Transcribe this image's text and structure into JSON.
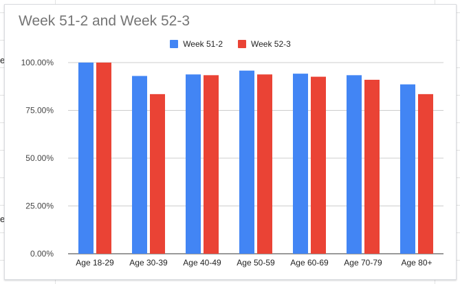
{
  "chart_data": {
    "type": "bar",
    "title": "Week 51-2 and Week 52-3",
    "xlabel": "",
    "ylabel": "",
    "categories": [
      "Age 18-29",
      "Age 30-39",
      "Age 40-49",
      "Age 50-59",
      "Age 60-69",
      "Age 70-79",
      "Age 80+"
    ],
    "series": [
      {
        "name": "Week 51-2",
        "color": "#4285f4",
        "values": [
          100.0,
          93.0,
          93.8,
          95.8,
          94.2,
          93.4,
          88.6
        ]
      },
      {
        "name": "Week 52-3",
        "color": "#ea4335",
        "values": [
          100.0,
          83.5,
          93.4,
          93.8,
          92.6,
          91.0,
          83.5
        ]
      }
    ],
    "ylim": [
      0,
      100
    ],
    "yticks": [
      "0.00%",
      "25.00%",
      "50.00%",
      "75.00%",
      "100.00%"
    ],
    "ytick_values": [
      0,
      25,
      50,
      75,
      100
    ],
    "grid": true,
    "legend_position": "top-center"
  },
  "background": {
    "side_glyphs": [
      "e",
      "e"
    ]
  }
}
